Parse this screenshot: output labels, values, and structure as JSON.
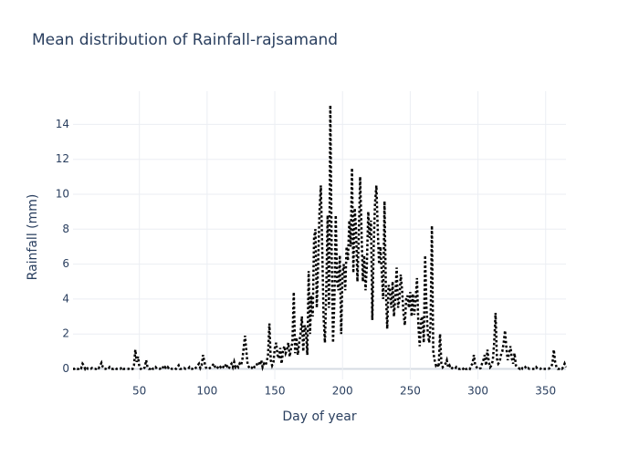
{
  "chart_data": {
    "type": "line",
    "title": "Mean distribution of Rainfall-rajsamand",
    "xlabel": "Day of year",
    "ylabel": "Rainfall (mm)",
    "color": "#000000",
    "dash": "dot",
    "grid": true,
    "xlim": [
      1,
      365
    ],
    "ylim": [
      -0.6,
      15.9
    ],
    "xticks": [
      50,
      100,
      150,
      200,
      250,
      300,
      350
    ],
    "yticks": [
      0,
      2,
      4,
      6,
      8,
      10,
      12,
      14
    ],
    "x": [
      1,
      2,
      3,
      4,
      5,
      6,
      7,
      8,
      9,
      10,
      11,
      12,
      13,
      14,
      15,
      16,
      17,
      18,
      19,
      20,
      21,
      22,
      23,
      24,
      25,
      26,
      27,
      28,
      29,
      30,
      31,
      32,
      33,
      34,
      35,
      36,
      37,
      38,
      39,
      40,
      41,
      42,
      43,
      44,
      45,
      46,
      47,
      48,
      49,
      50,
      51,
      52,
      53,
      54,
      55,
      56,
      57,
      58,
      59,
      60,
      61,
      62,
      63,
      64,
      65,
      66,
      67,
      68,
      69,
      70,
      71,
      72,
      73,
      74,
      75,
      76,
      77,
      78,
      79,
      80,
      81,
      82,
      83,
      84,
      85,
      86,
      87,
      88,
      89,
      90,
      91,
      92,
      93,
      94,
      95,
      96,
      97,
      98,
      99,
      100,
      101,
      102,
      103,
      104,
      105,
      106,
      107,
      108,
      109,
      110,
      111,
      112,
      113,
      114,
      115,
      116,
      117,
      118,
      119,
      120,
      121,
      122,
      123,
      124,
      125,
      126,
      127,
      128,
      129,
      130,
      131,
      132,
      133,
      134,
      135,
      136,
      137,
      138,
      139,
      140,
      141,
      142,
      143,
      144,
      145,
      146,
      147,
      148,
      149,
      150,
      151,
      152,
      153,
      154,
      155,
      156,
      157,
      158,
      159,
      160,
      161,
      162,
      163,
      164,
      165,
      166,
      167,
      168,
      169,
      170,
      171,
      172,
      173,
      174,
      175,
      176,
      177,
      178,
      179,
      180,
      181,
      182,
      183,
      184,
      185,
      186,
      187,
      188,
      189,
      190,
      191,
      192,
      193,
      194,
      195,
      196,
      197,
      198,
      199,
      200,
      201,
      202,
      203,
      204,
      205,
      206,
      207,
      208,
      209,
      210,
      211,
      212,
      213,
      214,
      215,
      216,
      217,
      218,
      219,
      220,
      221,
      222,
      223,
      224,
      225,
      226,
      227,
      228,
      229,
      230,
      231,
      232,
      233,
      234,
      235,
      236,
      237,
      238,
      239,
      240,
      241,
      242,
      243,
      244,
      245,
      246,
      247,
      248,
      249,
      250,
      251,
      252,
      253,
      254,
      255,
      256,
      257,
      258,
      259,
      260,
      261,
      262,
      263,
      264,
      265,
      266,
      267,
      268,
      269,
      270,
      271,
      272,
      273,
      274,
      275,
      276,
      277,
      278,
      279,
      280,
      281,
      282,
      283,
      284,
      285,
      286,
      287,
      288,
      289,
      290,
      291,
      292,
      293,
      294,
      295,
      296,
      297,
      298,
      299,
      300,
      301,
      302,
      303,
      304,
      305,
      306,
      307,
      308,
      309,
      310,
      311,
      312,
      313,
      314,
      315,
      316,
      317,
      318,
      319,
      320,
      321,
      322,
      323,
      324,
      325,
      326,
      327,
      328,
      329,
      330,
      331,
      332,
      333,
      334,
      335,
      336,
      337,
      338,
      339,
      340,
      341,
      342,
      343,
      344,
      345,
      346,
      347,
      348,
      349,
      350,
      351,
      352,
      353,
      354,
      355,
      356,
      357,
      358,
      359,
      360,
      361,
      362,
      363,
      364,
      365
    ],
    "values": [
      0,
      0,
      0.05,
      0,
      0,
      0.1,
      0.05,
      0.3,
      0.2,
      0,
      0.1,
      0,
      0,
      0,
      0.05,
      0,
      0,
      0,
      0.1,
      0.05,
      0.2,
      0.35,
      0.1,
      0,
      0,
      0.05,
      0,
      0.1,
      0,
      0,
      0,
      0.05,
      0,
      0,
      0,
      0,
      0.1,
      0,
      0,
      0,
      0,
      0,
      0.05,
      0,
      0,
      0.2,
      1.1,
      0.4,
      0.7,
      0.1,
      0,
      0.05,
      0,
      0.1,
      0.5,
      0.1,
      0,
      0,
      0.1,
      0,
      0,
      0.1,
      0,
      0,
      0,
      0.05,
      0.15,
      0,
      0.1,
      0,
      0.1,
      0,
      0.05,
      0,
      0,
      0.05,
      0,
      0.1,
      0.2,
      0,
      0,
      0,
      0.05,
      0,
      0,
      0,
      0.1,
      0,
      0,
      0.05,
      0,
      0.1,
      0.2,
      0.3,
      0.05,
      0.2,
      0.8,
      0.4,
      0.1,
      0,
      0,
      0.05,
      0.1,
      0.2,
      0.3,
      0.1,
      0,
      0.1,
      0.2,
      0.1,
      0.2,
      0.1,
      0.05,
      0.3,
      0.1,
      0,
      0.2,
      0.3,
      0.1,
      0.4,
      0.1,
      0.2,
      0.1,
      0.3,
      0.2,
      0.5,
      1.2,
      1.9,
      1.0,
      0.2,
      0.1,
      0,
      0.05,
      0.2,
      0.1,
      0.1,
      0.3,
      0.4,
      0.2,
      0.5,
      0.1,
      0.3,
      0.2,
      0.4,
      0.8,
      2.6,
      0.5,
      0.2,
      0.4,
      1.2,
      1.5,
      0.8,
      0.6,
      1.2,
      0.3,
      1.0,
      1.3,
      0.9,
      1.1,
      1.5,
      0.7,
      1.2,
      1.5,
      4.4,
      0.9,
      1.8,
      0.8,
      1.5,
      2.0,
      3.0,
      1.0,
      2.5,
      2.2,
      0.8,
      5.6,
      2.0,
      4.2,
      3.0,
      7.5,
      8.0,
      3.5,
      6.0,
      9.0,
      10.5,
      7.0,
      3.0,
      1.5,
      4.5,
      8.8,
      3.5,
      15.1,
      6.5,
      1.5,
      4.0,
      8.8,
      5.0,
      4.5,
      6.5,
      2.0,
      5.5,
      6.0,
      4.5,
      7.0,
      6.2,
      8.5,
      7.0,
      11.5,
      5.5,
      9.2,
      8.0,
      5.0,
      7.5,
      11.0,
      8.0,
      5.0,
      6.5,
      4.5,
      6.0,
      9.0,
      7.5,
      8.5,
      2.8,
      7.0,
      9.5,
      10.5,
      8.0,
      6.0,
      7.0,
      5.5,
      4.0,
      9.6,
      4.5,
      2.3,
      4.8,
      4.5,
      3.5,
      5.0,
      3.0,
      4.2,
      5.8,
      3.5,
      4.0,
      5.4,
      4.5,
      3.2,
      2.5,
      4.0,
      4.2,
      3.5,
      4.4,
      3.0,
      4.3,
      3.1,
      4.0,
      5.2,
      2.5,
      1.3,
      2.8,
      3.0,
      1.5,
      6.5,
      3.5,
      2.0,
      1.5,
      2.5,
      8.2,
      1.0,
      0.5,
      0.2,
      0.3,
      0.1,
      2.0,
      0.3,
      0.1,
      0.2,
      0.3,
      0.5,
      0.1,
      0.2,
      0,
      0.05,
      0,
      0,
      0.1,
      0,
      0,
      0,
      0.05,
      0,
      0.1,
      0,
      0,
      0.05,
      0,
      0.2,
      0.3,
      0.8,
      0.2,
      0.1,
      0,
      0,
      0.05,
      0.3,
      0.5,
      0.8,
      0.2,
      1.1,
      0.4,
      0.1,
      0.2,
      0.5,
      1.5,
      3.2,
      0.6,
      0.3,
      0.4,
      0.8,
      1.0,
      1.5,
      2.2,
      1.2,
      0.5,
      0.9,
      1.3,
      0.6,
      0.3,
      0.9,
      0.2,
      0.1,
      0.05,
      0,
      0.1,
      0,
      0,
      0.1,
      0,
      0.05,
      0,
      0,
      0,
      0,
      0,
      0.1,
      0,
      0,
      0,
      0.05,
      0,
      0,
      0,
      0,
      0,
      0.05,
      0.1,
      0.3,
      1.1,
      0.4,
      0.1,
      0,
      0,
      0.05,
      0,
      0.1,
      0.3,
      0.1
    ]
  }
}
